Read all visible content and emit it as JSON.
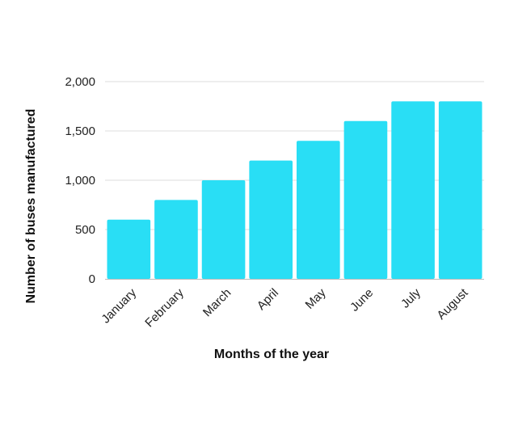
{
  "chart_data": {
    "type": "bar",
    "title": "",
    "xlabel": "Months of the year",
    "ylabel": "Number of buses manufactured",
    "categories": [
      "January",
      "February",
      "March",
      "April",
      "May",
      "June",
      "July",
      "August"
    ],
    "values": [
      600,
      800,
      1000,
      1200,
      1400,
      1600,
      1800,
      1800
    ],
    "ylim": [
      0,
      2000
    ],
    "yticks": [
      0,
      500,
      1000,
      1500,
      2000
    ],
    "ytick_labels": [
      "0",
      "500",
      "1,000",
      "1,500",
      "2,000"
    ],
    "grid": true,
    "bar_color": "#29DEF5",
    "gridline_color": "#DDDDDD"
  }
}
